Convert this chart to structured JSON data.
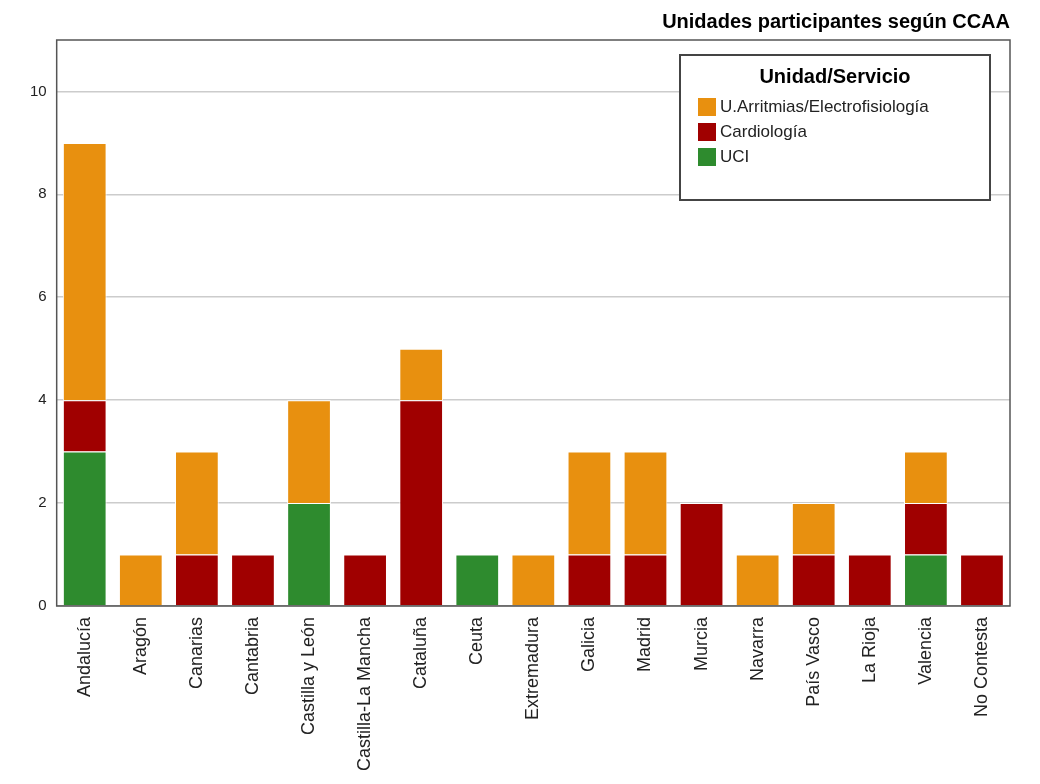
{
  "chart_data": {
    "type": "bar",
    "title": "Unidades participantes según CCAA",
    "legend_title": "Unidad/Servicio",
    "categories": [
      "Andalucía",
      "Aragón",
      "Canarias",
      "Cantabria",
      "Castilla y León",
      "Castilla-La Mancha",
      "Cataluña",
      "Ceuta",
      "Extremadura",
      "Galicia",
      "Madrid",
      "Murcia",
      "Navarra",
      "País Vasco",
      "La Rioja",
      "Valencia",
      "No Contesta"
    ],
    "series": [
      {
        "name": "UCI",
        "color": "#2e8b2e",
        "values": [
          3,
          null,
          null,
          null,
          2,
          null,
          null,
          1,
          null,
          null,
          null,
          null,
          null,
          null,
          null,
          1,
          null
        ]
      },
      {
        "name": "Cardiología",
        "color": "#a00000",
        "values": [
          1,
          null,
          1,
          1,
          null,
          1,
          4,
          null,
          null,
          1,
          1,
          2,
          null,
          1,
          1,
          1,
          1
        ]
      },
      {
        "name": "U.Arritmias/Electrofisiología",
        "color": "#e8900f",
        "values": [
          5,
          1,
          2,
          null,
          2,
          null,
          1,
          null,
          1,
          2,
          2,
          null,
          1,
          1,
          null,
          1,
          null
        ]
      }
    ],
    "stacked": true,
    "ylim": [
      0,
      11
    ],
    "yticks": [
      0,
      2,
      4,
      6,
      8,
      10
    ],
    "grid": "y",
    "legend": "top right"
  }
}
